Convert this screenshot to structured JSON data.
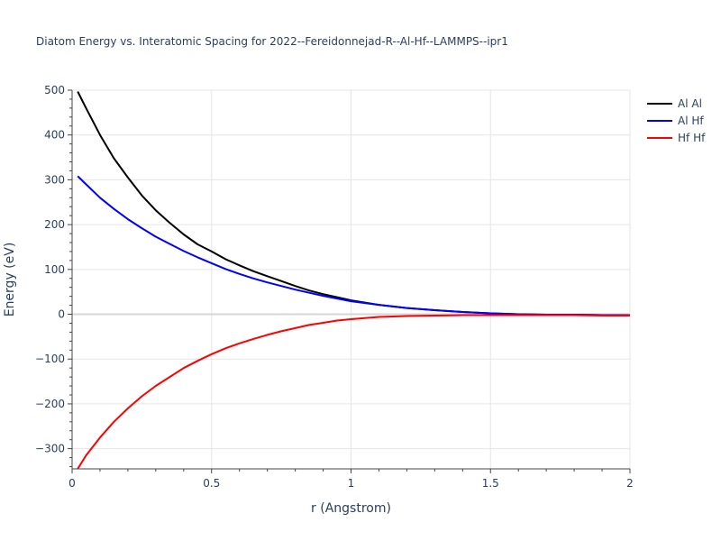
{
  "chart_data": {
    "type": "line",
    "title": "Diatom Energy vs. Interatomic Spacing for 2022--Fereidonnejad-R--Al-Hf--LAMMPS--ipr1",
    "xlabel": "r (Angstrom)",
    "ylabel": "Energy (eV)",
    "xlim": [
      0,
      2
    ],
    "ylim": [
      -345,
      500
    ],
    "xticks": [
      0,
      0.5,
      1,
      1.5,
      2
    ],
    "xtick_labels": [
      "0",
      "0.5",
      "1",
      "1.5",
      "2"
    ],
    "yticks": [
      -300,
      -200,
      -100,
      0,
      100,
      200,
      300,
      400,
      500
    ],
    "ytick_labels": [
      "−300",
      "−200",
      "−100",
      "0",
      "100",
      "200",
      "300",
      "400",
      "500"
    ],
    "grid": true,
    "legend_position": "top-right",
    "series": [
      {
        "name": "Al Al",
        "color": "#000000",
        "x": [
          0.02,
          0.05,
          0.1,
          0.15,
          0.2,
          0.25,
          0.3,
          0.35,
          0.4,
          0.45,
          0.5,
          0.55,
          0.6,
          0.65,
          0.7,
          0.75,
          0.8,
          0.85,
          0.9,
          0.95,
          1.0,
          1.1,
          1.2,
          1.3,
          1.4,
          1.5,
          1.6,
          1.7,
          1.8,
          1.9,
          2.0
        ],
        "y": [
          497,
          460,
          400,
          348,
          305,
          265,
          232,
          204,
          178,
          156,
          140,
          123,
          109,
          96,
          85,
          74,
          63,
          53,
          45,
          38,
          31,
          21,
          14,
          9,
          5,
          2,
          0,
          -1,
          -1,
          -2,
          -2
        ]
      },
      {
        "name": "Al Hf",
        "color": "#0000ff",
        "x": [
          0.02,
          0.05,
          0.1,
          0.15,
          0.2,
          0.25,
          0.3,
          0.35,
          0.4,
          0.45,
          0.5,
          0.55,
          0.6,
          0.65,
          0.7,
          0.75,
          0.8,
          0.85,
          0.9,
          0.95,
          1.0,
          1.1,
          1.2,
          1.3,
          1.4,
          1.5,
          1.6,
          1.7,
          1.8,
          1.9,
          2.0
        ],
        "y": [
          308,
          290,
          260,
          235,
          212,
          192,
          173,
          157,
          141,
          127,
          114,
          101,
          90,
          80,
          71,
          63,
          55,
          48,
          41,
          35,
          29,
          21,
          14,
          9,
          5,
          2,
          0,
          -1,
          -1,
          -2,
          -2
        ]
      },
      {
        "name": "Hf Hf",
        "color": "#ff0000",
        "x": [
          0.02,
          0.05,
          0.1,
          0.15,
          0.2,
          0.25,
          0.3,
          0.35,
          0.4,
          0.45,
          0.5,
          0.55,
          0.6,
          0.65,
          0.7,
          0.75,
          0.8,
          0.85,
          0.9,
          0.95,
          1.0,
          1.1,
          1.2,
          1.3,
          1.4,
          1.5,
          1.6,
          1.7,
          1.8,
          1.9,
          2.0
        ],
        "y": [
          -345,
          -315,
          -275,
          -240,
          -210,
          -183,
          -160,
          -140,
          -120,
          -104,
          -89,
          -76,
          -65,
          -55,
          -46,
          -38,
          -31,
          -24,
          -19,
          -14,
          -11,
          -6,
          -4,
          -3,
          -2,
          -2,
          -2,
          -2,
          -2,
          -3,
          -3
        ]
      }
    ]
  }
}
